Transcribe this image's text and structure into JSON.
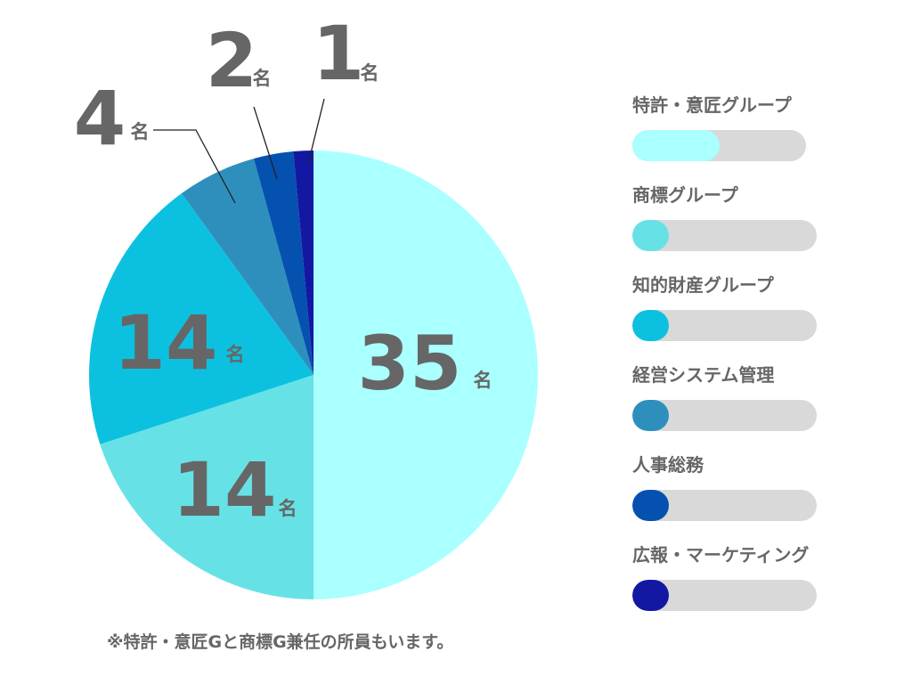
{
  "chart_data": {
    "type": "pie",
    "unit": "名",
    "slices": [
      {
        "label": "特許・意匠グループ",
        "value": 35,
        "color": "#aaffff",
        "fill_fraction": 0.5
      },
      {
        "label": "商標グループ",
        "value": 14,
        "color": "#66e2e6",
        "fill_fraction": 0.2
      },
      {
        "label": "知的財産グループ",
        "value": 14,
        "color": "#0cc1e0",
        "fill_fraction": 0.2
      },
      {
        "label": "経営システム管理",
        "value": 4,
        "color": "#2e8fbd",
        "fill_fraction": 0.2
      },
      {
        "label": "人事総務",
        "value": 2,
        "color": "#0551b0",
        "fill_fraction": 0.2
      },
      {
        "label": "広報・マーケティング",
        "value": 1,
        "color": "#1318a3",
        "fill_fraction": 0.2
      }
    ]
  },
  "legend": {
    "items": [
      {
        "label": "特許・意匠グループ"
      },
      {
        "label": "商標グループ"
      },
      {
        "label": "知的財産グループ"
      },
      {
        "label": "経営システム管理"
      },
      {
        "label": "人事総務"
      },
      {
        "label": "広報・マーケティング"
      }
    ]
  },
  "note": "※特許・意匠Gと商標G兼任の所員もいます。"
}
